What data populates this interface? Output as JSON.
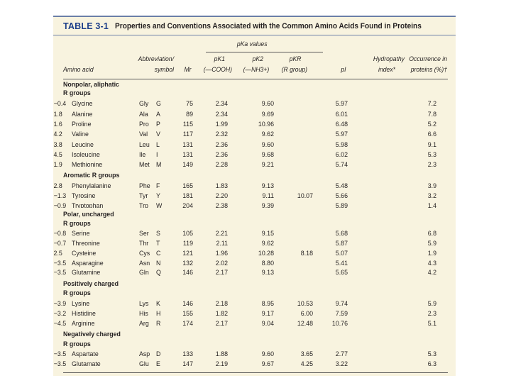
{
  "table": {
    "label": "TABLE 3-1",
    "title": "Properties and Conventions Associated with the Common Amino Acids Found in Proteins",
    "headers": {
      "pka_values": "pKa values",
      "amino_acid": "Amino acid",
      "abbr_line1": "Abbreviation/",
      "abbr_line2": "symbol",
      "mr": "Mr",
      "pk1_line1": "pK1",
      "pk1_line2": "(—COOH)",
      "pk2_line1": "pK2",
      "pk2_line2": "(—NH3+)",
      "pkr_line1": "pKR",
      "pkr_line2": "(R group)",
      "pi": "pI",
      "hydro_line1": "Hydropathy",
      "hydro_line2": "index*",
      "occ_line1": "Occurrence in",
      "occ_line2": "proteins (%)†"
    },
    "groups": [
      {
        "title": [
          "Nonpolar, aliphatic",
          "R groups"
        ],
        "rows": [
          {
            "name": "Glycine",
            "abbr": "Gly",
            "one": "G",
            "mr": "75",
            "pk1": "2.34",
            "pk2": "9.60",
            "pkr": "",
            "pi": "5.97",
            "hydro": "−0.4",
            "occ": "7.2"
          },
          {
            "name": "Alanine",
            "abbr": "Ala",
            "one": "A",
            "mr": "89",
            "pk1": "2.34",
            "pk2": "9.69",
            "pkr": "",
            "pi": "6.01",
            "hydro": "1.8",
            "occ": "7.8"
          },
          {
            "name": "Proline",
            "abbr": "Pro",
            "one": "P",
            "mr": "115",
            "pk1": "1.99",
            "pk2": "10.96",
            "pkr": "",
            "pi": "6.48",
            "hydro": "1.6",
            "occ": "5.2"
          },
          {
            "name": "Valine",
            "abbr": "Val",
            "one": "V",
            "mr": "117",
            "pk1": "2.32",
            "pk2": "9.62",
            "pkr": "",
            "pi": "5.97",
            "hydro": "4.2",
            "occ": "6.6"
          },
          {
            "name": "Leucine",
            "abbr": "Leu",
            "one": "L",
            "mr": "131",
            "pk1": "2.36",
            "pk2": "9.60",
            "pkr": "",
            "pi": "5.98",
            "hydro": "3.8",
            "occ": "9.1"
          },
          {
            "name": "Isoleucine",
            "abbr": "Ile",
            "one": "I",
            "mr": "131",
            "pk1": "2.36",
            "pk2": "9.68",
            "pkr": "",
            "pi": "6.02",
            "hydro": "4.5",
            "occ": "5.3"
          },
          {
            "name": "Methionine",
            "abbr": "Met",
            "one": "M",
            "mr": "149",
            "pk1": "2.28",
            "pk2": "9.21",
            "pkr": "",
            "pi": "5.74",
            "hydro": "1.9",
            "occ": "2.3"
          }
        ]
      },
      {
        "title": [
          "Aromatic R groups"
        ],
        "rows": [
          {
            "name": "Phenylalanine",
            "abbr": "Phe",
            "one": "F",
            "mr": "165",
            "pk1": "1.83",
            "pk2": "9.13",
            "pkr": "",
            "pi": "5.48",
            "hydro": "2.8",
            "occ": "3.9"
          },
          {
            "name": "Tyrosine",
            "abbr": "Tyr",
            "one": "Y",
            "mr": "181",
            "pk1": "2.20",
            "pk2": "9.11",
            "pkr": "10.07",
            "pi": "5.66",
            "hydro": "−1.3",
            "occ": "3.2"
          },
          {
            "name": "Tryptophan",
            "abbr": "Trp",
            "one": "W",
            "mr": "204",
            "pk1": "2.38",
            "pk2": "9.39",
            "pkr": "",
            "pi": "5.89",
            "hydro": "−0.9",
            "occ": "1.4"
          }
        ]
      },
      {
        "title": [
          "Polar, uncharged",
          "R groups"
        ],
        "rows": [
          {
            "name": "Serine",
            "abbr": "Ser",
            "one": "S",
            "mr": "105",
            "pk1": "2.21",
            "pk2": "9.15",
            "pkr": "",
            "pi": "5.68",
            "hydro": "−0.8",
            "occ": "6.8"
          },
          {
            "name": "Threonine",
            "abbr": "Thr",
            "one": "T",
            "mr": "119",
            "pk1": "2.11",
            "pk2": "9.62",
            "pkr": "",
            "pi": "5.87",
            "hydro": "−0.7",
            "occ": "5.9"
          },
          {
            "name": "Cysteine",
            "abbr": "Cys",
            "one": "C",
            "mr": "121",
            "pk1": "1.96",
            "pk2": "10.28",
            "pkr": "8.18",
            "pi": "5.07",
            "hydro": "2.5",
            "occ": "1.9"
          },
          {
            "name": "Asparagine",
            "abbr": "Asn",
            "one": "N",
            "mr": "132",
            "pk1": "2.02",
            "pk2": "8.80",
            "pkr": "",
            "pi": "5.41",
            "hydro": "−3.5",
            "occ": "4.3"
          },
          {
            "name": "Glutamine",
            "abbr": "Gln",
            "one": "Q",
            "mr": "146",
            "pk1": "2.17",
            "pk2": "9.13",
            "pkr": "",
            "pi": "5.65",
            "hydro": "−3.5",
            "occ": "4.2"
          }
        ]
      },
      {
        "title": [
          "Positively charged",
          "R groups"
        ],
        "rows": [
          {
            "name": "Lysine",
            "abbr": "Lys",
            "one": "K",
            "mr": "146",
            "pk1": "2.18",
            "pk2": "8.95",
            "pkr": "10.53",
            "pi": "9.74",
            "hydro": "−3.9",
            "occ": "5.9"
          },
          {
            "name": "Histidine",
            "abbr": "His",
            "one": "H",
            "mr": "155",
            "pk1": "1.82",
            "pk2": "9.17",
            "pkr": "6.00",
            "pi": "7.59",
            "hydro": "−3.2",
            "occ": "2.3"
          },
          {
            "name": "Arginine",
            "abbr": "Arg",
            "one": "R",
            "mr": "174",
            "pk1": "2.17",
            "pk2": "9.04",
            "pkr": "12.48",
            "pi": "10.76",
            "hydro": "−4.5",
            "occ": "5.1"
          }
        ]
      },
      {
        "title": [
          "Negatively charged",
          "R groups"
        ],
        "rows": [
          {
            "name": "Aspartate",
            "abbr": "Asp",
            "one": "D",
            "mr": "133",
            "pk1": "1.88",
            "pk2": "9.60",
            "pkr": "3.65",
            "pi": "2.77",
            "hydro": "−3.5",
            "occ": "5.3"
          },
          {
            "name": "Glutamate",
            "abbr": "Glu",
            "one": "E",
            "mr": "147",
            "pk1": "2.19",
            "pk2": "9.67",
            "pkr": "4.25",
            "pi": "3.22",
            "hydro": "−3.5",
            "occ": "6.3"
          }
        ]
      }
    ]
  }
}
